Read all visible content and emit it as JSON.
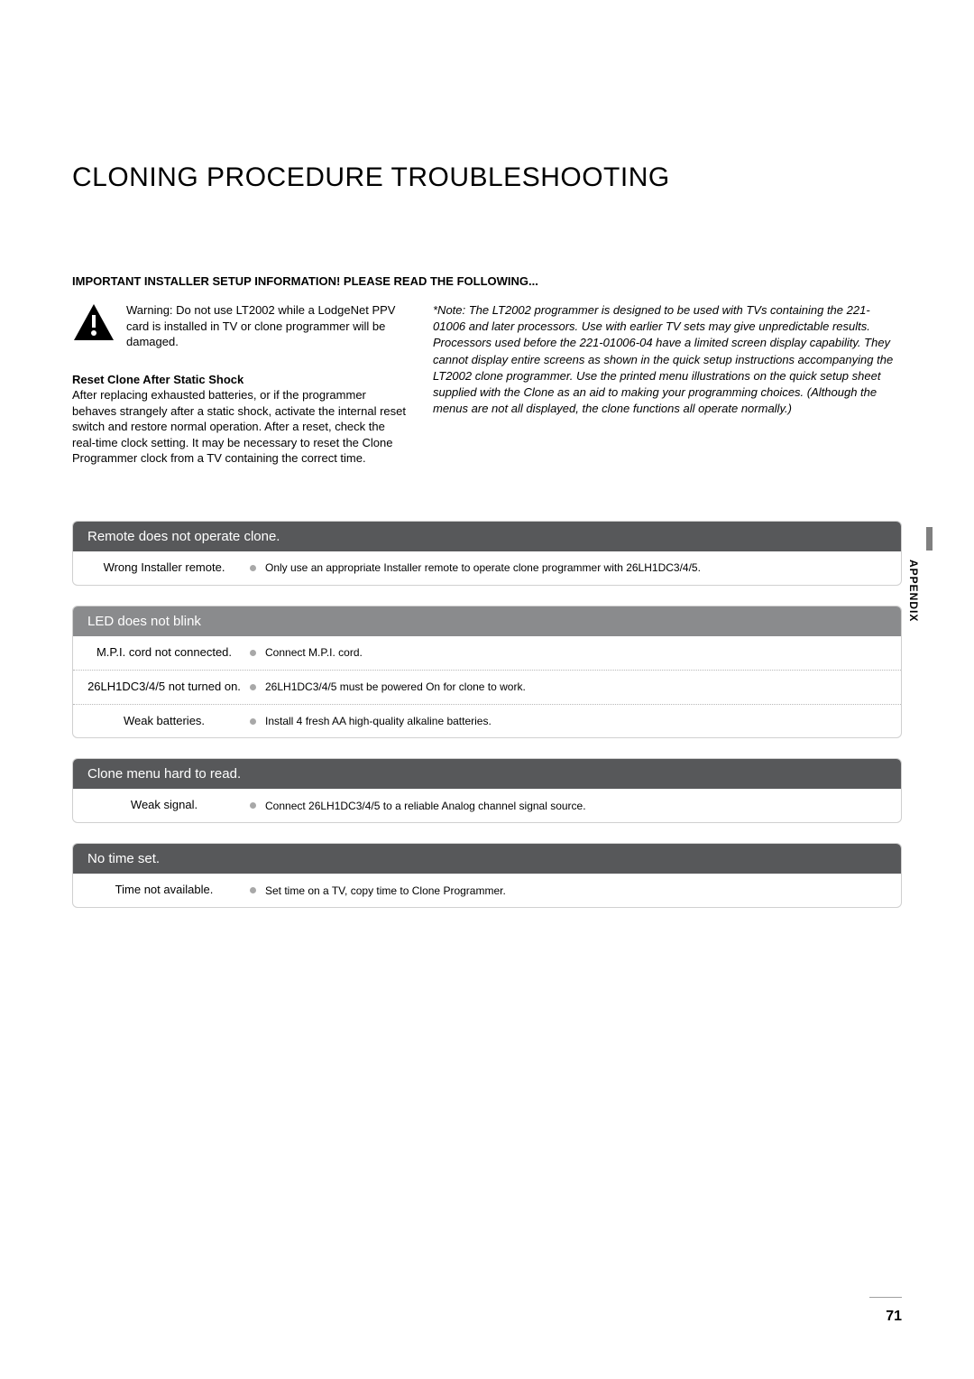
{
  "title": "CLONING PROCEDURE TROUBLESHOOTING",
  "setup_heading": "IMPORTANT INSTALLER SETUP INFORMATION! PLEASE READ THE FOLLOWING...",
  "warning_text": "Warning: Do not use LT2002 while a LodgeNet PPV card is installed in TV or clone programmer will be damaged.",
  "reset_heading": "Reset Clone After Static Shock",
  "reset_body": "After replacing exhausted batteries, or if the programmer behaves strangely after a static shock, activate the internal reset switch and restore normal operation. After a reset, check the real-time clock setting. It may be necessary to reset the Clone Programmer clock from a TV containing the correct time.",
  "note_text": "*Note: The LT2002 programmer is designed to be used with TVs containing the 221-01006 and later processors. Use with earlier TV sets may give unpredictable results. Processors used before the 221-01006-04 have a limited screen display capability. They cannot display entire screens as shown in the quick setup instructions accompanying the LT2002 clone programmer. Use the printed menu illustrations on the quick setup sheet supplied with the Clone as an aid to making your programming choices. (Although the menus are not all displayed, the clone functions all operate normally.)",
  "header_bg": "#57585a",
  "header_light_bg": "#8a8b8d",
  "sections": [
    {
      "title": "Remote does not operate clone.",
      "rows": [
        {
          "cause": "Wrong Installer remote.",
          "solution": "Only use an appropriate Installer remote to operate clone programmer with 26LH1DC3/4/5."
        }
      ]
    },
    {
      "title": "LED does not blink",
      "rows": [
        {
          "cause": "M.P.I. cord not connected.",
          "solution": "Connect M.P.I. cord."
        },
        {
          "cause": "26LH1DC3/4/5 not turned on.",
          "solution": "26LH1DC3/4/5 must be powered On for clone to work."
        },
        {
          "cause": "Weak batteries.",
          "solution": "Install 4 fresh AA high-quality alkaline batteries."
        }
      ]
    },
    {
      "title": "Clone menu hard to read.",
      "rows": [
        {
          "cause": "Weak signal.",
          "solution": "Connect 26LH1DC3/4/5 to a reliable Analog channel signal source."
        }
      ]
    },
    {
      "title": "No time set.",
      "rows": [
        {
          "cause": "Time not  available.",
          "solution": "Set time on a TV, copy time to Clone Programmer."
        }
      ]
    }
  ],
  "side_tab": "APPENDIX",
  "page_number": "71"
}
